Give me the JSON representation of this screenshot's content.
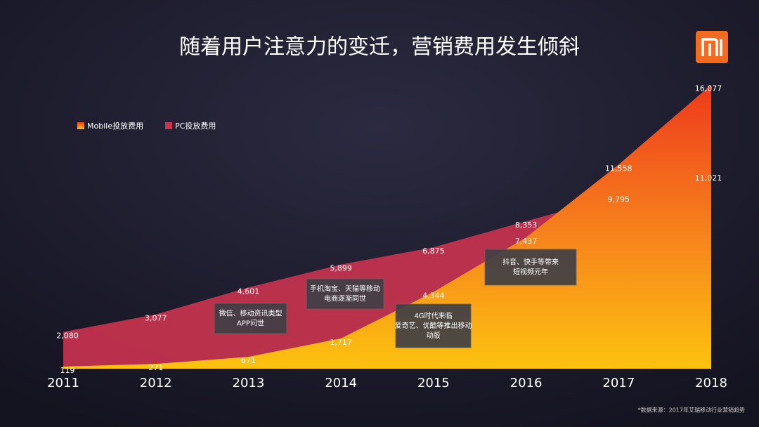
{
  "chart_data": {
    "type": "area",
    "title": "随着用户注意力的变迁，营销费用发生倾斜",
    "categories": [
      "2011",
      "2012",
      "2013",
      "2014",
      "2015",
      "2016",
      "2017",
      "2018"
    ],
    "series": [
      {
        "name": "PC投放费用",
        "color": "#c8334f",
        "values": [
          2080,
          3077,
          4601,
          5899,
          6875,
          8353,
          9795,
          11021
        ],
        "value_labels": [
          "2,080",
          "3,077",
          "4,601",
          "5,899",
          "6,875",
          "8,353",
          "9,795",
          "11,021"
        ]
      },
      {
        "name": "Mobile投放费用",
        "color": "#ee3a1c",
        "values": [
          119,
          271,
          671,
          1717,
          4344,
          7437,
          11558,
          16077
        ],
        "value_labels": [
          "119",
          "271",
          "671",
          "1,717",
          "4,344",
          "7,437",
          "11,558",
          "16,077"
        ]
      }
    ],
    "ylim": [
      0,
      16500
    ],
    "legend": "top-left",
    "annotations": [
      [
        "微信、移动资讯类型",
        "APP问世"
      ],
      [
        "手机淘宝、天猫等移动",
        "电商逐渐同世"
      ],
      [
        "4G时代来临",
        "爱奇艺、优酷等推出移动",
        "动版"
      ],
      [
        "抖音、快手等带来",
        "短视频元年"
      ]
    ],
    "source": "*数据来源：2017年艾瑞移动行业营销趋势"
  }
}
